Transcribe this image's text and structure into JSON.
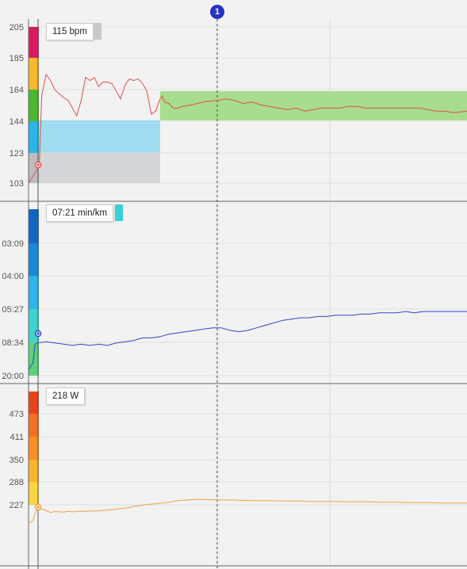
{
  "colors": {
    "hr_line": "#d9534f",
    "pace_line": "#2f47c4",
    "power_line": "#f2a140",
    "dashed_marker": "#444444",
    "marker_badge": "#2632c6"
  },
  "marker": {
    "label": "1"
  },
  "chart_data": [
    {
      "type": "line",
      "id": "heart_rate",
      "title": "",
      "yticks": [
        "205",
        "185",
        "164",
        "144",
        "123",
        "103"
      ],
      "ylim": [
        93,
        214
      ],
      "readout": {
        "text": "115 bpm",
        "swatch": "#c9c9c9"
      },
      "zones": [
        {
          "from": 185,
          "to": 205,
          "color": "#d81b60"
        },
        {
          "from": 164,
          "to": 185,
          "color": "#f5b82e"
        },
        {
          "from": 144,
          "to": 164,
          "color": "#4cb82f"
        },
        {
          "from": 123,
          "to": 144,
          "color": "#29b6e6"
        },
        {
          "from": 103,
          "to": 123,
          "color": "#bdbdbd"
        }
      ],
      "bands": [
        {
          "from": 103,
          "to": 123,
          "start": 0.0,
          "end": 0.3,
          "color": "#d4d6d7"
        },
        {
          "from": 123,
          "to": 144,
          "start": 0.0,
          "end": 0.3,
          "color": "#9fdcf0"
        },
        {
          "from": 144,
          "to": 163,
          "start": 0.3,
          "end": 1.0,
          "color": "#a8dc8e"
        }
      ],
      "series": [
        {
          "points": [
            [
              0.0,
              103
            ],
            [
              0.02,
              112
            ],
            [
              0.025,
              118
            ],
            [
              0.03,
              160
            ],
            [
              0.04,
              174
            ],
            [
              0.05,
              170
            ],
            [
              0.06,
              164
            ],
            [
              0.075,
              160
            ],
            [
              0.09,
              157
            ],
            [
              0.1,
              152
            ],
            [
              0.11,
              147
            ],
            [
              0.12,
              157
            ],
            [
              0.13,
              172
            ],
            [
              0.14,
              170
            ],
            [
              0.15,
              172
            ],
            [
              0.16,
              166
            ],
            [
              0.17,
              169
            ],
            [
              0.18,
              169
            ],
            [
              0.19,
              168
            ],
            [
              0.2,
              163
            ],
            [
              0.21,
              158
            ],
            [
              0.22,
              167
            ],
            [
              0.23,
              171
            ],
            [
              0.24,
              170
            ],
            [
              0.25,
              171
            ],
            [
              0.26,
              168
            ],
            [
              0.27,
              163
            ],
            [
              0.28,
              148
            ],
            [
              0.29,
              150
            ],
            [
              0.3,
              158
            ],
            [
              0.305,
              160
            ],
            [
              0.31,
              156
            ],
            [
              0.32,
              155
            ],
            [
              0.33,
              152
            ],
            [
              0.34,
              152
            ],
            [
              0.35,
              153
            ],
            [
              0.37,
              154
            ],
            [
              0.4,
              156
            ],
            [
              0.43,
              157
            ],
            [
              0.45,
              158
            ],
            [
              0.47,
              157
            ],
            [
              0.49,
              155
            ],
            [
              0.51,
              156
            ],
            [
              0.53,
              154
            ],
            [
              0.55,
              153
            ],
            [
              0.57,
              152
            ],
            [
              0.59,
              151
            ],
            [
              0.61,
              152
            ],
            [
              0.63,
              150
            ],
            [
              0.65,
              151
            ],
            [
              0.67,
              152
            ],
            [
              0.69,
              152
            ],
            [
              0.71,
              152
            ],
            [
              0.73,
              153
            ],
            [
              0.75,
              153
            ],
            [
              0.77,
              152
            ],
            [
              0.79,
              152
            ],
            [
              0.81,
              152
            ],
            [
              0.83,
              152
            ],
            [
              0.85,
              152
            ],
            [
              0.87,
              152
            ],
            [
              0.89,
              152
            ],
            [
              0.91,
              151
            ],
            [
              0.93,
              150
            ],
            [
              0.95,
              150
            ],
            [
              0.97,
              149
            ],
            [
              1.0,
              150
            ]
          ]
        }
      ]
    },
    {
      "type": "line",
      "id": "pace",
      "title": "",
      "yticks": [
        "03:09",
        "04:00",
        "05:27",
        "08:34",
        "20:00"
      ],
      "readout": {
        "text": "07:21 min/km",
        "swatch": "#36d0d8"
      },
      "zones": [
        {
          "color": "#1565c0"
        },
        {
          "color": "#1a88d6"
        },
        {
          "color": "#2fb4ea"
        },
        {
          "color": "#3fd3cf"
        },
        {
          "color": "#5bd17a"
        }
      ],
      "series": [
        {
          "points": [
            [
              0.0,
              0.05
            ],
            [
              0.01,
              0.1
            ],
            [
              0.015,
              0.25
            ],
            [
              0.02,
              0.26
            ],
            [
              0.04,
              0.27
            ],
            [
              0.06,
              0.26
            ],
            [
              0.08,
              0.25
            ],
            [
              0.1,
              0.24
            ],
            [
              0.12,
              0.25
            ],
            [
              0.14,
              0.24
            ],
            [
              0.16,
              0.25
            ],
            [
              0.18,
              0.24
            ],
            [
              0.2,
              0.26
            ],
            [
              0.22,
              0.27
            ],
            [
              0.24,
              0.28
            ],
            [
              0.26,
              0.3
            ],
            [
              0.28,
              0.3
            ],
            [
              0.3,
              0.31
            ],
            [
              0.32,
              0.33
            ],
            [
              0.34,
              0.34
            ],
            [
              0.36,
              0.35
            ],
            [
              0.38,
              0.36
            ],
            [
              0.4,
              0.37
            ],
            [
              0.42,
              0.38
            ],
            [
              0.44,
              0.38
            ],
            [
              0.46,
              0.36
            ],
            [
              0.48,
              0.35
            ],
            [
              0.5,
              0.36
            ],
            [
              0.52,
              0.38
            ],
            [
              0.54,
              0.4
            ],
            [
              0.56,
              0.42
            ],
            [
              0.58,
              0.44
            ],
            [
              0.6,
              0.45
            ],
            [
              0.62,
              0.46
            ],
            [
              0.64,
              0.46
            ],
            [
              0.66,
              0.47
            ],
            [
              0.68,
              0.47
            ],
            [
              0.7,
              0.48
            ],
            [
              0.72,
              0.48
            ],
            [
              0.74,
              0.48
            ],
            [
              0.76,
              0.49
            ],
            [
              0.78,
              0.49
            ],
            [
              0.8,
              0.5
            ],
            [
              0.82,
              0.5
            ],
            [
              0.84,
              0.5
            ],
            [
              0.86,
              0.51
            ],
            [
              0.88,
              0.5
            ],
            [
              0.9,
              0.51
            ],
            [
              0.92,
              0.51
            ],
            [
              0.94,
              0.51
            ],
            [
              0.96,
              0.51
            ],
            [
              0.98,
              0.51
            ],
            [
              1.0,
              0.51
            ]
          ]
        }
      ]
    },
    {
      "type": "line",
      "id": "power",
      "title": "",
      "yticks": [
        "473",
        "411",
        "350",
        "288",
        "227"
      ],
      "ylim": [
        170,
        535
      ],
      "readout": {
        "text": "218 W",
        "swatch": "#ffffff"
      },
      "zones": [
        {
          "color": "#e8441c"
        },
        {
          "color": "#f37024"
        },
        {
          "color": "#f58f2a"
        },
        {
          "color": "#f6b530"
        },
        {
          "color": "#f8d345"
        }
      ],
      "series": [
        {
          "points": [
            [
              0.0,
              175
            ],
            [
              0.01,
              185
            ],
            [
              0.02,
              220
            ],
            [
              0.03,
              215
            ],
            [
              0.04,
              212
            ],
            [
              0.05,
              206
            ],
            [
              0.06,
              209
            ],
            [
              0.07,
              208
            ],
            [
              0.08,
              207
            ],
            [
              0.09,
              209
            ],
            [
              0.1,
              208
            ],
            [
              0.11,
              209
            ],
            [
              0.12,
              210
            ],
            [
              0.13,
              209
            ],
            [
              0.14,
              211
            ],
            [
              0.15,
              210
            ],
            [
              0.16,
              211
            ],
            [
              0.17,
              212
            ],
            [
              0.18,
              213
            ],
            [
              0.19,
              214
            ],
            [
              0.2,
              215
            ],
            [
              0.21,
              217
            ],
            [
              0.22,
              218
            ],
            [
              0.23,
              220
            ],
            [
              0.24,
              222
            ],
            [
              0.25,
              224
            ],
            [
              0.26,
              226
            ],
            [
              0.27,
              228
            ],
            [
              0.28,
              229
            ],
            [
              0.29,
              230
            ],
            [
              0.3,
              231
            ],
            [
              0.31,
              233
            ],
            [
              0.32,
              234
            ],
            [
              0.33,
              236
            ],
            [
              0.34,
              238
            ],
            [
              0.35,
              239
            ],
            [
              0.36,
              240
            ],
            [
              0.37,
              241
            ],
            [
              0.38,
              241
            ],
            [
              0.39,
              242
            ],
            [
              0.4,
              241
            ],
            [
              0.42,
              241
            ],
            [
              0.44,
              240
            ],
            [
              0.46,
              240
            ],
            [
              0.48,
              239
            ],
            [
              0.5,
              239
            ],
            [
              0.52,
              238
            ],
            [
              0.54,
              238
            ],
            [
              0.56,
              238
            ],
            [
              0.58,
              237
            ],
            [
              0.6,
              237
            ],
            [
              0.62,
              237
            ],
            [
              0.64,
              236
            ],
            [
              0.66,
              236
            ],
            [
              0.68,
              236
            ],
            [
              0.7,
              236
            ],
            [
              0.72,
              235
            ],
            [
              0.74,
              235
            ],
            [
              0.76,
              235
            ],
            [
              0.78,
              235
            ],
            [
              0.8,
              234
            ],
            [
              0.82,
              234
            ],
            [
              0.84,
              234
            ],
            [
              0.86,
              233
            ],
            [
              0.88,
              233
            ],
            [
              0.9,
              233
            ],
            [
              0.92,
              233
            ],
            [
              0.94,
              232
            ],
            [
              0.96,
              232
            ],
            [
              0.98,
              232
            ],
            [
              1.0,
              232
            ]
          ]
        }
      ]
    }
  ]
}
